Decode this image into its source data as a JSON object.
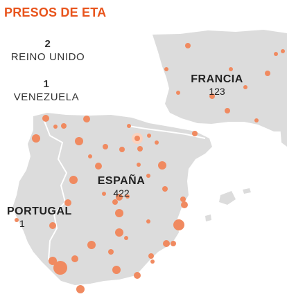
{
  "title": "PRESOS DE ETA",
  "outside": [
    {
      "count": "2",
      "name": "REINO UNIDO"
    },
    {
      "count": "1",
      "name": "VENEZUELA"
    }
  ],
  "countries": [
    {
      "name": "FRANCIA",
      "count": "123"
    },
    {
      "name": "ESPAÑA",
      "count": "422"
    },
    {
      "name": "PORTUGAL",
      "count": "1"
    }
  ],
  "colors": {
    "land": "#dcdcdc",
    "border": "#ffffff",
    "dot": "#f08a60",
    "title": "#e8541c"
  }
}
